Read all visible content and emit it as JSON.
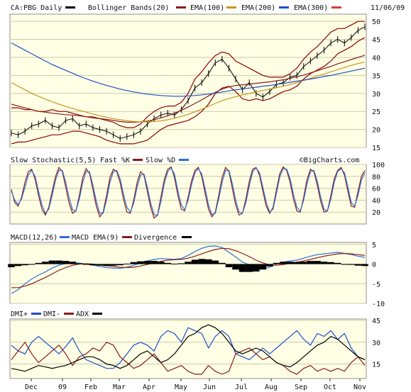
{
  "colors": {
    "price": "#000000",
    "bb": "#8b0000",
    "ema100": "#8b1a1a",
    "ema200": "#c8961e",
    "ema300": "#1f4fc8",
    "fastk": "#8b1a1a",
    "slowd": "#2e6fd8",
    "macd": "#2e6fd8",
    "macd_ema": "#8b1a1a",
    "divergence": "#000000",
    "dmi_plus": "#1f4fc8",
    "dmi_minus": "#8b1a1a",
    "adx": "#000000",
    "legend_bb": "#8b1a1a",
    "legend_ema300": "#d04040"
  },
  "header": {
    "symbol": "CA:PBG Daily",
    "bb_label": "Bollinger Bands(20)",
    "ema100_label": "EMA(100)",
    "ema200_label": "EMA(200)",
    "ema300_label": "EMA(300)",
    "date": "11/06/09"
  },
  "watermark": "©BigCharts.com",
  "chart_data": [
    {
      "type": "line",
      "panel": "price",
      "title": "CA:PBG Daily",
      "x": [
        "2008-11-06",
        "2008-11-13",
        "2008-11-20",
        "2008-11-27",
        "2008-12-04",
        "2008-12-11",
        "2008-12-18",
        "2008-12-25",
        "2009-01-01",
        "2009-01-08",
        "2009-01-15",
        "2009-01-22",
        "2009-01-29",
        "2009-02-05",
        "2009-02-12",
        "2009-02-19",
        "2009-02-26",
        "2009-03-05",
        "2009-03-12",
        "2009-03-19",
        "2009-03-26",
        "2009-04-02",
        "2009-04-09",
        "2009-04-16",
        "2009-04-23",
        "2009-04-30",
        "2009-05-07",
        "2009-05-14",
        "2009-05-21",
        "2009-05-28",
        "2009-06-04",
        "2009-06-11",
        "2009-06-18",
        "2009-06-25",
        "2009-07-02",
        "2009-07-09",
        "2009-07-16",
        "2009-07-23",
        "2009-07-30",
        "2009-08-06",
        "2009-08-13",
        "2009-08-20",
        "2009-08-27",
        "2009-09-03",
        "2009-09-10",
        "2009-09-17",
        "2009-09-24",
        "2009-10-01",
        "2009-10-08",
        "2009-10-15",
        "2009-10-22",
        "2009-10-29",
        "2009-11-05"
      ],
      "series": [
        {
          "name": "CA:PBG",
          "values": [
            19,
            18.5,
            19.5,
            21,
            21.5,
            22.5,
            21,
            20.5,
            22.5,
            23,
            21,
            21.5,
            20.5,
            20,
            19.5,
            18.5,
            17.5,
            18,
            18.5,
            19.5,
            21.5,
            23,
            24,
            24.5,
            24,
            25.5,
            28,
            31.5,
            33,
            35.5,
            38.5,
            39.5,
            37,
            34,
            31,
            33,
            30,
            29,
            30.5,
            32.5,
            33,
            34.5,
            35,
            37.5,
            39,
            40.5,
            42,
            44,
            45,
            44,
            45.5,
            47.5,
            48.5
          ]
        },
        {
          "name": "Bollinger Bands(20) upper",
          "values": [
            26,
            26,
            25.5,
            25.5,
            25,
            25,
            25.5,
            25,
            25,
            24.5,
            24,
            23.5,
            23.5,
            23,
            22.5,
            22,
            21,
            20.5,
            20.5,
            21.5,
            23.5,
            25,
            26,
            26.5,
            26.5,
            27.5,
            30,
            34,
            36,
            38.5,
            40.5,
            41.5,
            41,
            39,
            38,
            37,
            36,
            35,
            34.5,
            34.5,
            34.5,
            35.5,
            37,
            39.5,
            41.5,
            43,
            45,
            47,
            48,
            48,
            49,
            50,
            50
          ]
        },
        {
          "name": "Bollinger Bands(20) lower",
          "values": [
            16,
            16.5,
            16.5,
            17,
            17.5,
            18,
            18.5,
            18.5,
            19,
            19.5,
            19.5,
            19,
            18.5,
            18,
            17,
            16.5,
            16,
            16,
            16,
            16.5,
            17,
            18.5,
            20,
            21,
            21.5,
            22,
            22.5,
            23.5,
            25,
            27,
            30,
            31.5,
            32,
            30.5,
            28.5,
            28,
            28.5,
            28,
            28.5,
            29.5,
            30.5,
            31,
            32,
            34,
            35.5,
            36.5,
            37.5,
            39,
            41,
            42,
            43,
            44.5,
            45.5
          ]
        },
        {
          "name": "EMA(100)",
          "values": [
            27,
            26.5,
            26,
            25.5,
            25,
            24.8,
            24.5,
            24.3,
            24.1,
            24,
            23.8,
            23.5,
            23.2,
            23,
            22.8,
            22.5,
            22.2,
            22,
            22,
            22.1,
            22.3,
            22.7,
            23.2,
            23.8,
            24.5,
            25.3,
            26.2,
            27.2,
            28.2,
            29.3,
            30.3,
            31.2,
            31.8,
            32.2,
            32.4,
            32.6,
            32.8,
            33,
            33.2,
            33.5,
            33.8,
            34.2,
            34.6,
            35.1,
            35.7,
            36.3,
            36.9,
            37.5,
            38.2,
            38.8,
            39.4,
            40,
            40.6
          ]
        },
        {
          "name": "EMA(200)",
          "values": [
            33,
            32,
            31,
            30,
            29.2,
            28.4,
            27.7,
            27,
            26.4,
            25.8,
            25.3,
            24.8,
            24.3,
            23.8,
            23.4,
            23,
            22.7,
            22.4,
            22.2,
            22.1,
            22.1,
            22.2,
            22.4,
            22.7,
            23.1,
            23.6,
            24.2,
            24.9,
            25.6,
            26.4,
            27.2,
            28,
            28.6,
            29.1,
            29.6,
            30,
            30.4,
            30.8,
            31.2,
            31.6,
            32,
            32.5,
            33,
            33.6,
            34.2,
            34.8,
            35.4,
            36,
            36.6,
            37.2,
            37.8,
            38.3,
            38.7
          ]
        },
        {
          "name": "EMA(300)",
          "values": [
            44,
            43,
            42,
            41,
            40,
            39,
            38,
            37.2,
            36.4,
            35.6,
            34.8,
            34.1,
            33.4,
            32.8,
            32.2,
            31.7,
            31.2,
            30.8,
            30.4,
            30.1,
            29.8,
            29.6,
            29.4,
            29.3,
            29.2,
            29.2,
            29.3,
            29.4,
            29.6,
            29.8,
            30.1,
            30.4,
            30.7,
            31,
            31.2,
            31.5,
            31.7,
            32,
            32.2,
            32.5,
            32.8,
            33.1,
            33.4,
            33.7,
            34,
            34.3,
            34.7,
            35,
            35.4,
            35.8,
            36.2,
            36.6,
            37
          ]
        }
      ],
      "yticks": [
        15,
        20,
        25,
        30,
        35,
        40,
        45,
        50
      ],
      "ylim": [
        15,
        52
      ]
    },
    {
      "type": "line",
      "panel": "slow_stochastic",
      "title": "Slow Stochastic(5,5)",
      "legend": [
        "Fast %K",
        "Slow %D"
      ],
      "x_count": 105,
      "series": [
        {
          "name": "Fast %K",
          "values": [
            58,
            36,
            30,
            45,
            70,
            88,
            92,
            75,
            48,
            25,
            15,
            28,
            55,
            80,
            95,
            88,
            62,
            35,
            18,
            22,
            48,
            78,
            93,
            85,
            58,
            30,
            12,
            20,
            48,
            78,
            92,
            88,
            70,
            42,
            20,
            18,
            40,
            70,
            88,
            82,
            55,
            28,
            10,
            15,
            45,
            75,
            92,
            96,
            78,
            48,
            25,
            22,
            45,
            72,
            90,
            95,
            80,
            52,
            25,
            12,
            20,
            48,
            78,
            95,
            88,
            60,
            32,
            15,
            18,
            42,
            72,
            92,
            95,
            82,
            55,
            30,
            18,
            28,
            58,
            85,
            96,
            90,
            70,
            42,
            22,
            20,
            45,
            75,
            92,
            88,
            65,
            38,
            20,
            22,
            48,
            76,
            90,
            95,
            82,
            55,
            30,
            28,
            55,
            80,
            90
          ]
        },
        {
          "name": "Slow %D",
          "values": [
            55,
            40,
            33,
            42,
            62,
            82,
            90,
            80,
            55,
            32,
            18,
            25,
            48,
            74,
            90,
            90,
            70,
            44,
            24,
            22,
            42,
            70,
            88,
            88,
            65,
            38,
            18,
            18,
            40,
            70,
            88,
            90,
            76,
            50,
            28,
            20,
            35,
            62,
            82,
            84,
            62,
            35,
            16,
            14,
            38,
            68,
            88,
            94,
            84,
            56,
            32,
            24,
            40,
            66,
            86,
            93,
            84,
            60,
            32,
            16,
            18,
            42,
            70,
            90,
            90,
            68,
            40,
            20,
            18,
            36,
            64,
            88,
            94,
            86,
            62,
            36,
            20,
            25,
            52,
            80,
            93,
            92,
            76,
            50,
            28,
            22,
            40,
            68,
            88,
            90,
            72,
            45,
            25,
            22,
            42,
            70,
            88,
            93,
            86,
            62,
            36,
            30,
            48,
            74,
            86
          ]
        }
      ],
      "yticks": [
        20,
        40,
        60,
        80,
        100
      ],
      "ylim": [
        0,
        100
      ]
    },
    {
      "type": "line",
      "panel": "macd",
      "title": "MACD(12,26)",
      "legend": [
        "MACD EMA(9)",
        "Divergence"
      ],
      "x_count": 53,
      "series": [
        {
          "name": "MACD(12,26)",
          "values": [
            -7.5,
            -6.5,
            -5,
            -3.8,
            -2.8,
            -2,
            -1,
            -0.3,
            0.2,
            0.5,
            0.2,
            0,
            -0.3,
            -0.6,
            -0.9,
            -1,
            -1.1,
            -0.8,
            -0.3,
            0.3,
            0.8,
            1.2,
            1.4,
            1.3,
            1.2,
            1.4,
            2.2,
            3.2,
            4,
            4.5,
            4.6,
            4.2,
            3,
            1.8,
            0.5,
            -0.2,
            -1,
            -1.2,
            -0.8,
            0,
            0.5,
            0.8,
            1,
            1.5,
            2,
            2.4,
            2.6,
            2.8,
            3,
            2.7,
            2.4,
            2,
            1.7
          ]
        },
        {
          "name": "MACD EMA(9)",
          "values": [
            -6,
            -6,
            -5.6,
            -5,
            -4.2,
            -3.4,
            -2.5,
            -1.6,
            -0.9,
            -0.3,
            0,
            0.1,
            0,
            -0.2,
            -0.4,
            -0.6,
            -0.8,
            -0.9,
            -0.8,
            -0.5,
            -0.1,
            0.3,
            0.7,
            1,
            1.1,
            1.2,
            1.5,
            2,
            2.6,
            3.2,
            3.7,
            4,
            3.9,
            3.4,
            2.7,
            1.9,
            1,
            0.3,
            -0.2,
            -0.3,
            -0.1,
            0.2,
            0.5,
            0.8,
            1.2,
            1.6,
            2,
            2.3,
            2.6,
            2.7,
            2.6,
            2.4,
            2.2
          ]
        },
        {
          "name": "Divergence",
          "values": [
            -0.8,
            -0.5,
            -0.3,
            -0.1,
            0.3,
            0.6,
            0.9,
            0.9,
            0.8,
            0.6,
            0.2,
            -0.1,
            -0.3,
            -0.4,
            -0.5,
            -0.4,
            -0.3,
            0.1,
            0.5,
            0.7,
            0.8,
            0.8,
            0.6,
            0.3,
            0.1,
            0.2,
            0.6,
            1.1,
            1.3,
            1.2,
            0.9,
            0.3,
            -0.8,
            -1.4,
            -2,
            -2,
            -1.9,
            -1.4,
            -0.6,
            0.3,
            0.6,
            0.6,
            0.5,
            0.6,
            0.8,
            0.8,
            0.6,
            0.5,
            0.3,
            0,
            -0.2,
            -0.4,
            -0.5
          ]
        }
      ],
      "yticks": [
        -10,
        -5,
        0,
        5
      ],
      "ylim": [
        -10,
        5.5
      ]
    },
    {
      "type": "line",
      "panel": "dmi",
      "title": "DMI+",
      "legend": [
        "DMI-",
        "ADX"
      ],
      "x_count": 53,
      "series": [
        {
          "name": "DMI+",
          "values": [
            28,
            24,
            22,
            30,
            34,
            30,
            26,
            22,
            27,
            33,
            24,
            18,
            16,
            14,
            12,
            12,
            16,
            22,
            28,
            30,
            28,
            24,
            34,
            38,
            36,
            30,
            40,
            38,
            36,
            26,
            34,
            38,
            34,
            22,
            20,
            18,
            22,
            26,
            22,
            26,
            30,
            34,
            38,
            32,
            28,
            36,
            34,
            38,
            32,
            36,
            26,
            20,
            18
          ]
        },
        {
          "name": "DMI-",
          "values": [
            18,
            24,
            30,
            22,
            16,
            20,
            24,
            28,
            22,
            14,
            20,
            22,
            26,
            24,
            30,
            28,
            20,
            16,
            12,
            14,
            18,
            22,
            16,
            10,
            12,
            14,
            10,
            8,
            8,
            14,
            10,
            8,
            10,
            22,
            24,
            26,
            22,
            18,
            20,
            16,
            14,
            10,
            8,
            12,
            14,
            10,
            12,
            10,
            12,
            10,
            16,
            20,
            14
          ]
        },
        {
          "name": "ADX",
          "values": [
            12,
            11,
            10,
            12,
            14,
            13,
            12,
            13,
            14,
            16,
            18,
            20,
            20,
            18,
            15,
            14,
            12,
            14,
            18,
            22,
            24,
            20,
            16,
            18,
            22,
            28,
            34,
            36,
            40,
            42,
            40,
            36,
            30,
            24,
            22,
            24,
            26,
            24,
            20,
            16,
            14,
            13,
            16,
            20,
            24,
            28,
            30,
            34,
            32,
            28,
            24,
            20,
            18
          ]
        }
      ],
      "yticks": [
        15,
        30,
        45
      ],
      "ylim": [
        5,
        46
      ]
    }
  ],
  "xaxis_labels": [
    "Dec",
    "09",
    "Feb",
    "Mar",
    "Apr",
    "May",
    "Jun",
    "Jul",
    "Aug",
    "Sep",
    "Oct",
    "Nov"
  ]
}
